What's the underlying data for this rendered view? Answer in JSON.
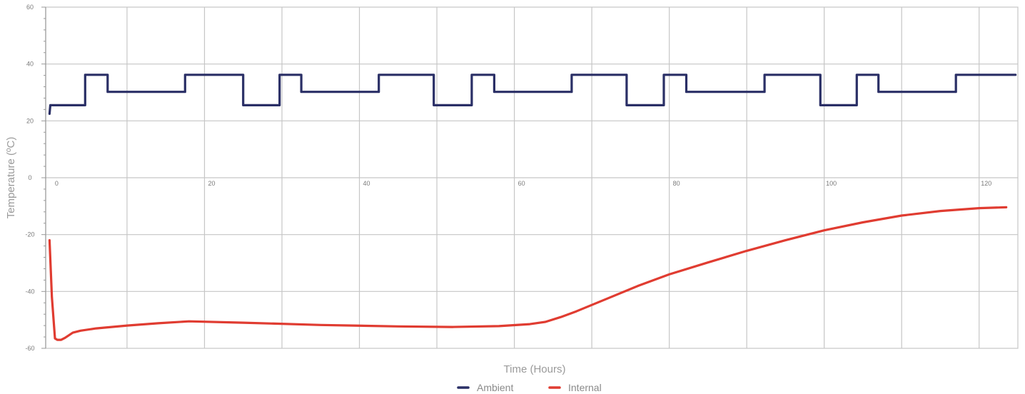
{
  "chart_data": {
    "type": "line",
    "title": "",
    "xlabel": "Time (Hours)",
    "ylabel": "Temperature (ºC)",
    "xlim": [
      -0.5,
      125
    ],
    "ylim": [
      -60,
      60
    ],
    "x_ticks": [
      0,
      20,
      40,
      60,
      80,
      100,
      120
    ],
    "y_ticks": [
      -60,
      -40,
      -20,
      0,
      20,
      40,
      60
    ],
    "grid": true,
    "legend_position": "bottom-center",
    "series": [
      {
        "name": "Ambient",
        "color": "#2a2f66",
        "x": [
          0,
          0.1,
          4.6,
          4.6,
          7.5,
          7.5,
          17.5,
          17.5,
          25.0,
          25.0,
          29.7,
          29.7,
          32.5,
          32.5,
          42.5,
          42.5,
          49.6,
          49.6,
          54.5,
          54.5,
          57.4,
          57.4,
          67.4,
          67.4,
          74.5,
          74.5,
          79.3,
          79.3,
          82.2,
          82.2,
          92.3,
          92.3,
          99.5,
          99.5,
          104.2,
          104.2,
          107.0,
          107.0,
          117.0,
          117.0,
          124.7
        ],
        "y": [
          22.5,
          25.5,
          25.5,
          36.2,
          36.2,
          30.2,
          30.2,
          36.2,
          36.2,
          25.5,
          25.5,
          36.2,
          36.2,
          30.2,
          30.2,
          36.2,
          36.2,
          25.5,
          25.5,
          36.2,
          36.2,
          30.2,
          30.2,
          36.2,
          36.2,
          25.5,
          25.5,
          36.2,
          36.2,
          30.2,
          30.2,
          36.2,
          36.2,
          25.5,
          25.5,
          36.2,
          36.2,
          30.2,
          30.2,
          36.2,
          36.2
        ]
      },
      {
        "name": "Internal",
        "color": "#e03c31",
        "x": [
          0,
          0.3,
          0.7,
          1.0,
          1.5,
          2.0,
          3.0,
          4.0,
          6.0,
          8.0,
          10.0,
          14.0,
          18.0,
          25.0,
          35.0,
          45.0,
          52.0,
          58.0,
          62.0,
          64.0,
          66.0,
          68.0,
          72.0,
          76.0,
          80.0,
          85.0,
          90.0,
          95.0,
          100.0,
          105.0,
          110.0,
          115.0,
          120.0,
          123.5
        ],
        "y": [
          -22,
          -42,
          -56.5,
          -57,
          -57,
          -56.3,
          -54.5,
          -53.8,
          -53.0,
          -52.5,
          -52.0,
          -51.2,
          -50.5,
          -51.0,
          -51.8,
          -52.3,
          -52.5,
          -52.2,
          -51.5,
          -50.7,
          -49.0,
          -47.0,
          -42.5,
          -38.0,
          -34.0,
          -29.8,
          -25.7,
          -22.0,
          -18.5,
          -15.7,
          -13.3,
          -11.7,
          -10.7,
          -10.4
        ]
      }
    ]
  }
}
